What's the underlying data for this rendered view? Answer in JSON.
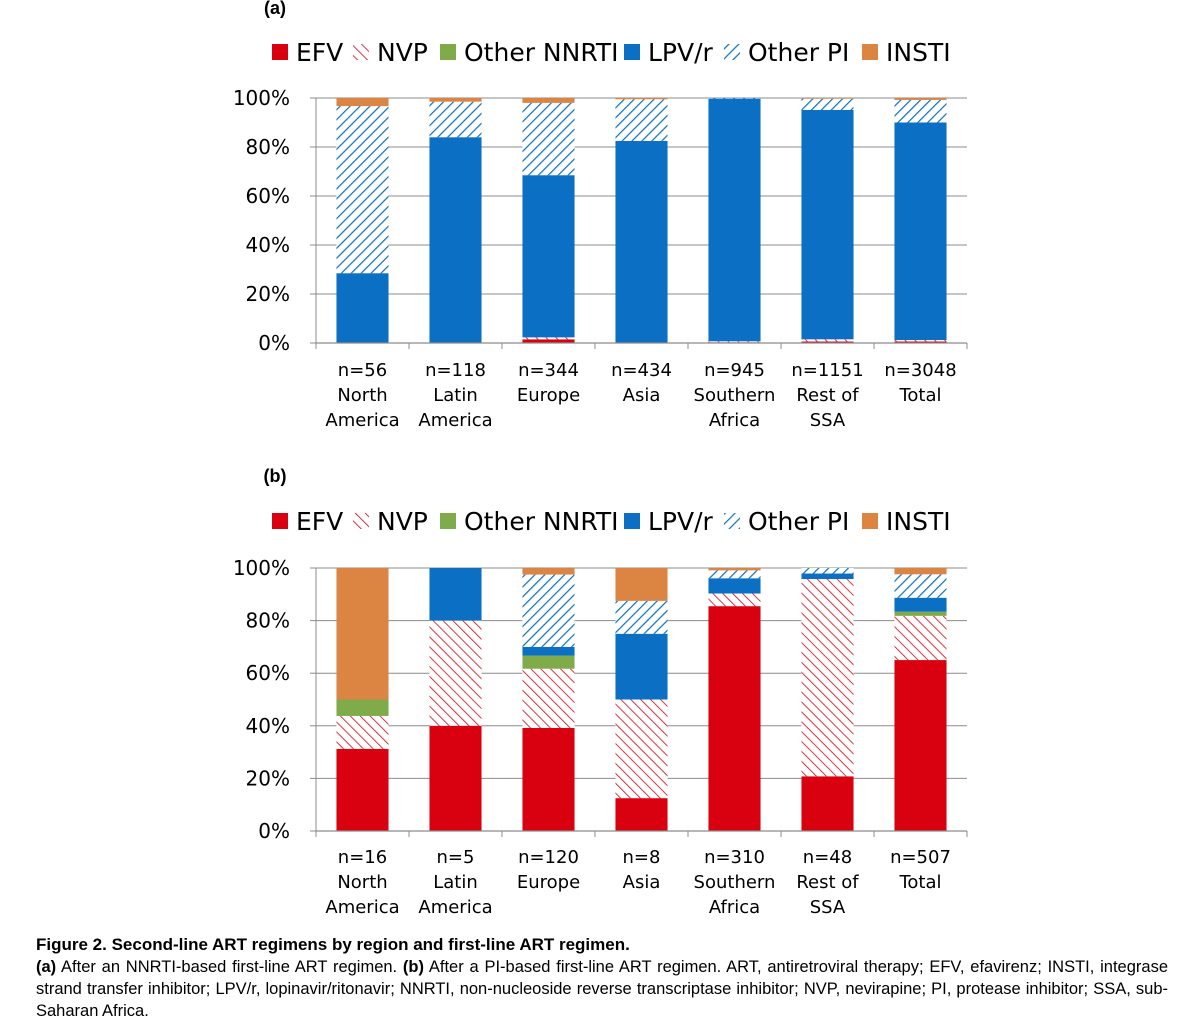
{
  "colors": {
    "EFV": "#d9000f",
    "NVP": "#d9000f",
    "Other NNRTI": "#7fab4a",
    "LPV/r": "#0b6fc4",
    "Other PI": "#0b6fc4",
    "INSTI": "#dc8542"
  },
  "chart_data": [
    {
      "panel_label": "(a)",
      "type": "bar",
      "stacked": true,
      "categories": [
        [
          "n=56",
          "North",
          "America"
        ],
        [
          "n=118",
          "Latin",
          "America"
        ],
        [
          "n=344",
          "Europe"
        ],
        [
          "n=434",
          "Asia"
        ],
        [
          "n=945",
          "Southern",
          "Africa"
        ],
        [
          "n=1151",
          "Rest of",
          "SSA"
        ],
        [
          "n=3048",
          "Total"
        ]
      ],
      "ylim": [
        0,
        100
      ],
      "yticks": [
        "0%",
        "20%",
        "40%",
        "60%",
        "80%",
        "100%"
      ],
      "grid": true,
      "legend_position": "top",
      "series": [
        {
          "name": "EFV",
          "pattern": "solid",
          "values": [
            0,
            0,
            1.5,
            0,
            0.3,
            0.6,
            0.6
          ]
        },
        {
          "name": "NVP",
          "pattern": "hatch",
          "values": [
            0,
            0,
            0.8,
            0,
            0.4,
            0.9,
            0.6
          ]
        },
        {
          "name": "Other NNRTI",
          "pattern": "solid",
          "values": [
            0,
            0,
            0,
            0,
            0,
            0,
            0
          ]
        },
        {
          "name": "LPV/r",
          "pattern": "solid",
          "values": [
            28.5,
            84,
            66.2,
            82.5,
            99.1,
            93.6,
            88.8
          ]
        },
        {
          "name": "Other PI",
          "pattern": "hatch",
          "values": [
            68.2,
            14.5,
            29.5,
            17,
            0.2,
            4.6,
            9.2
          ]
        },
        {
          "name": "INSTI",
          "pattern": "solid",
          "values": [
            3.3,
            1.5,
            2,
            0.5,
            0,
            0.3,
            0.8
          ]
        }
      ]
    },
    {
      "panel_label": "(b)",
      "type": "bar",
      "stacked": true,
      "categories": [
        [
          "n=16",
          "North",
          "America"
        ],
        [
          "n=5",
          "Latin",
          "America"
        ],
        [
          "n=120",
          "Europe"
        ],
        [
          "n=8",
          "Asia"
        ],
        [
          "n=310",
          "Southern",
          "Africa"
        ],
        [
          "n=48",
          "Rest of",
          "SSA"
        ],
        [
          "n=507",
          "Total"
        ]
      ],
      "ylim": [
        0,
        100
      ],
      "yticks": [
        "0%",
        "20%",
        "40%",
        "60%",
        "80%",
        "100%"
      ],
      "grid": true,
      "legend_position": "top",
      "series": [
        {
          "name": "EFV",
          "pattern": "solid",
          "values": [
            31.25,
            40,
            39.2,
            12.5,
            85.5,
            20.8,
            65
          ]
        },
        {
          "name": "NVP",
          "pattern": "hatch",
          "values": [
            12.5,
            40,
            22.5,
            37.5,
            4.8,
            75,
            16.8
          ]
        },
        {
          "name": "Other NNRTI",
          "pattern": "solid",
          "values": [
            6.25,
            0,
            5,
            0,
            0,
            0,
            1.6
          ]
        },
        {
          "name": "LPV/r",
          "pattern": "solid",
          "values": [
            0,
            20,
            3.3,
            25,
            5.8,
            2.1,
            5.3
          ]
        },
        {
          "name": "Other PI",
          "pattern": "hatch",
          "values": [
            0,
            0,
            27.5,
            12.5,
            3,
            2.1,
            8.9
          ]
        },
        {
          "name": "INSTI",
          "pattern": "solid",
          "values": [
            50,
            0,
            2.5,
            12.5,
            0.9,
            0,
            2.4
          ]
        }
      ]
    }
  ],
  "caption": {
    "title": "Figure 2.  Second-line ART regimens by region and first-line ART regimen.",
    "a_label": "(a)",
    "a_text": " After an NNRTI-based first-line ART regimen. ",
    "b_label": "(b)",
    "b_text": " After a PI-based first-line ART regimen. ART, antiretroviral therapy; EFV, efavirenz; INSTI, integrase strand transfer inhibitor; LPV/r, lopinavir/ritonavir; NNRTI, non-nucleoside reverse transcriptase inhibitor; NVP, nevirapine; PI, protease inhibitor; SSA, sub-Saharan Africa."
  }
}
